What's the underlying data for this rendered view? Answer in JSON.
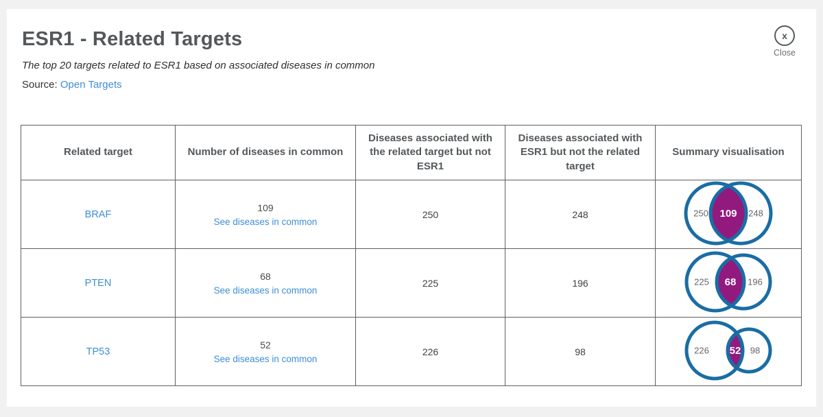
{
  "header": {
    "title": "ESR1 - Related Targets",
    "subtitle": "The top 20 targets related to ESR1 based on associated diseases in common",
    "source_label": "Source:",
    "source_link": "Open Targets",
    "close": {
      "icon": "x",
      "label": "Close"
    }
  },
  "colors": {
    "page_background": "#f1f1f1",
    "panel_background": "#ffffff",
    "title_gray": "#54585b",
    "border_gray": "#5f5f5f",
    "link_blue": "#3d8ed5",
    "venn_stroke": "#1a6da4",
    "venn_fill": "#921a7f"
  },
  "table": {
    "columns": [
      "Related target",
      "Number of diseases in common",
      "Diseases associated with the related target but not ESR1",
      "Diseases associated with ESR1 but not the related target",
      "Summary visualisation"
    ],
    "rows": [
      {
        "target": "BRAF",
        "common": "109",
        "common_link": "See diseases in common",
        "related_only": "250",
        "esr1_only": "248",
        "venn": {
          "r1": 44,
          "r2": 44,
          "d": 36,
          "left": "250",
          "center": "109",
          "right": "248"
        }
      },
      {
        "target": "PTEN",
        "common": "68",
        "common_link": "See diseases in common",
        "related_only": "225",
        "esr1_only": "196",
        "venn": {
          "r1": 42,
          "r2": 39,
          "d": 41,
          "left": "225",
          "center": "68",
          "right": "196"
        }
      },
      {
        "target": "TP53",
        "common": "52",
        "common_link": "See diseases in common",
        "related_only": "226",
        "esr1_only": "98",
        "venn": {
          "r1": 41,
          "r2": 31,
          "d": 50,
          "left": "226",
          "center": "52",
          "right": "98"
        }
      }
    ]
  },
  "chart_data": [
    {
      "type": "venn",
      "target": "BRAF",
      "sets": {
        "related_target_only": 250,
        "common": 109,
        "esr1_only": 248
      }
    },
    {
      "type": "venn",
      "target": "PTEN",
      "sets": {
        "related_target_only": 225,
        "common": 68,
        "esr1_only": 196
      }
    },
    {
      "type": "venn",
      "target": "TP53",
      "sets": {
        "related_target_only": 226,
        "common": 52,
        "esr1_only": 98
      }
    }
  ]
}
